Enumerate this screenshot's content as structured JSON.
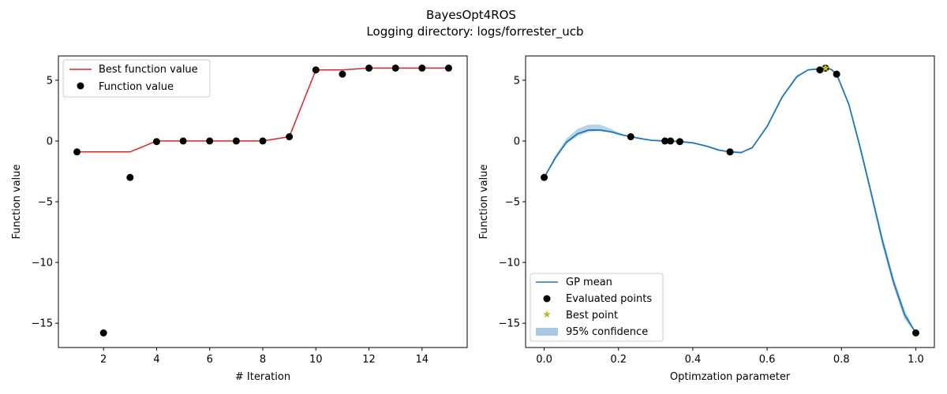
{
  "figure": {
    "title_line1": "BayesOpt4ROS",
    "title_line2": "Logging directory: logs/forrester_ucb"
  },
  "colors": {
    "best_line": "#d62728",
    "points": "#000000",
    "gp_mean": "#1f77b4",
    "confidence": "#a6c8e0",
    "best_point": "#bcbd22"
  },
  "chart_data": [
    {
      "type": "line",
      "xlabel": "# Iteration",
      "ylabel": "Function value",
      "xlim": [
        0.3,
        15.7
      ],
      "ylim": [
        -17.0,
        7.0
      ],
      "xticks": [
        2,
        4,
        6,
        8,
        10,
        12,
        14
      ],
      "yticks": [
        -15,
        -10,
        -5,
        0,
        5
      ],
      "legend": {
        "position": "top-left",
        "entries": [
          "Best function value",
          "Function value"
        ]
      },
      "series": [
        {
          "name": "Best function value",
          "style": "line",
          "x": [
            1,
            2,
            3,
            4,
            5,
            6,
            7,
            8,
            9,
            10,
            11,
            12,
            13,
            14,
            15
          ],
          "y": [
            -0.9,
            -0.9,
            -0.9,
            0.0,
            0.0,
            0.0,
            0.0,
            0.0,
            0.35,
            5.85,
            5.85,
            6.0,
            6.0,
            6.0,
            6.0
          ]
        },
        {
          "name": "Function value",
          "style": "markers",
          "x": [
            1,
            2,
            3,
            4,
            5,
            6,
            7,
            8,
            9,
            10,
            11,
            12,
            13,
            14,
            15
          ],
          "y": [
            -0.9,
            -15.8,
            -3.0,
            -0.05,
            0.0,
            0.0,
            0.0,
            0.0,
            0.35,
            5.85,
            5.5,
            6.0,
            6.0,
            6.0,
            6.0
          ]
        }
      ]
    },
    {
      "type": "line",
      "xlabel": "Optimzation parameter",
      "ylabel": "Function value",
      "xlim": [
        -0.05,
        1.05
      ],
      "ylim": [
        -17.0,
        7.0
      ],
      "xticks": [
        0.0,
        0.2,
        0.4,
        0.6,
        0.8,
        1.0
      ],
      "xtick_labels": [
        "0.0",
        "0.2",
        "0.4",
        "0.6",
        "0.8",
        "1.0"
      ],
      "yticks": [
        -15,
        -10,
        -5,
        0,
        5
      ],
      "legend": {
        "position": "bottom-left",
        "entries": [
          "GP mean",
          "Evaluated points",
          "Best point",
          "95% confidence"
        ]
      },
      "gp_mean": {
        "x": [
          0.0,
          0.03,
          0.06,
          0.09,
          0.12,
          0.15,
          0.18,
          0.21,
          0.233,
          0.26,
          0.29,
          0.325,
          0.34,
          0.365,
          0.4,
          0.44,
          0.47,
          0.5,
          0.53,
          0.56,
          0.6,
          0.64,
          0.68,
          0.71,
          0.742,
          0.757,
          0.772,
          0.787,
          0.82,
          0.85,
          0.88,
          0.91,
          0.94,
          0.97,
          1.0
        ],
        "y": [
          -3.0,
          -1.4,
          -0.1,
          0.6,
          0.9,
          0.9,
          0.75,
          0.5,
          0.35,
          0.2,
          0.05,
          0.0,
          0.0,
          -0.05,
          -0.15,
          -0.45,
          -0.75,
          -0.9,
          -0.95,
          -0.55,
          1.2,
          3.6,
          5.3,
          5.85,
          5.95,
          6.0,
          5.9,
          5.5,
          3.0,
          -0.5,
          -4.3,
          -8.2,
          -11.6,
          -14.3,
          -15.8
        ]
      },
      "confidence": {
        "x": [
          0.0,
          0.03,
          0.06,
          0.09,
          0.12,
          0.15,
          0.18,
          0.21,
          0.233,
          0.26,
          0.29,
          0.325,
          0.34,
          0.365,
          0.4,
          0.44,
          0.47,
          0.5,
          0.53,
          0.56,
          0.6,
          0.64,
          0.68,
          0.71,
          0.742,
          0.757,
          0.772,
          0.787,
          0.82,
          0.85,
          0.88,
          0.91,
          0.94,
          0.97,
          1.0
        ],
        "lower": [
          -3.0,
          -1.5,
          -0.25,
          0.4,
          0.75,
          0.82,
          0.7,
          0.48,
          0.35,
          0.18,
          0.03,
          0.0,
          0.0,
          -0.05,
          -0.17,
          -0.5,
          -0.82,
          -0.9,
          -0.98,
          -0.62,
          1.1,
          3.5,
          5.2,
          5.82,
          5.95,
          6.0,
          5.88,
          5.5,
          2.85,
          -0.75,
          -4.6,
          -8.6,
          -12.0,
          -14.7,
          -15.8
        ],
        "upper": [
          -3.0,
          -1.2,
          0.2,
          1.0,
          1.35,
          1.35,
          1.0,
          0.58,
          0.35,
          0.22,
          0.07,
          0.0,
          0.0,
          -0.05,
          -0.13,
          -0.4,
          -0.68,
          -0.9,
          -0.92,
          -0.48,
          1.3,
          3.7,
          5.4,
          5.88,
          5.95,
          6.0,
          5.92,
          5.5,
          3.15,
          -0.25,
          -4.0,
          -7.8,
          -11.2,
          -13.9,
          -15.8
        ]
      },
      "evaluated_points": {
        "x": [
          0.0,
          0.233,
          0.325,
          0.34,
          0.365,
          0.5,
          0.742,
          0.757,
          0.787,
          1.0
        ],
        "y": [
          -3.0,
          0.35,
          0.0,
          0.0,
          -0.05,
          -0.9,
          5.85,
          6.0,
          5.5,
          -15.8
        ]
      },
      "best_point": {
        "x": 0.757,
        "y": 6.0
      }
    }
  ]
}
